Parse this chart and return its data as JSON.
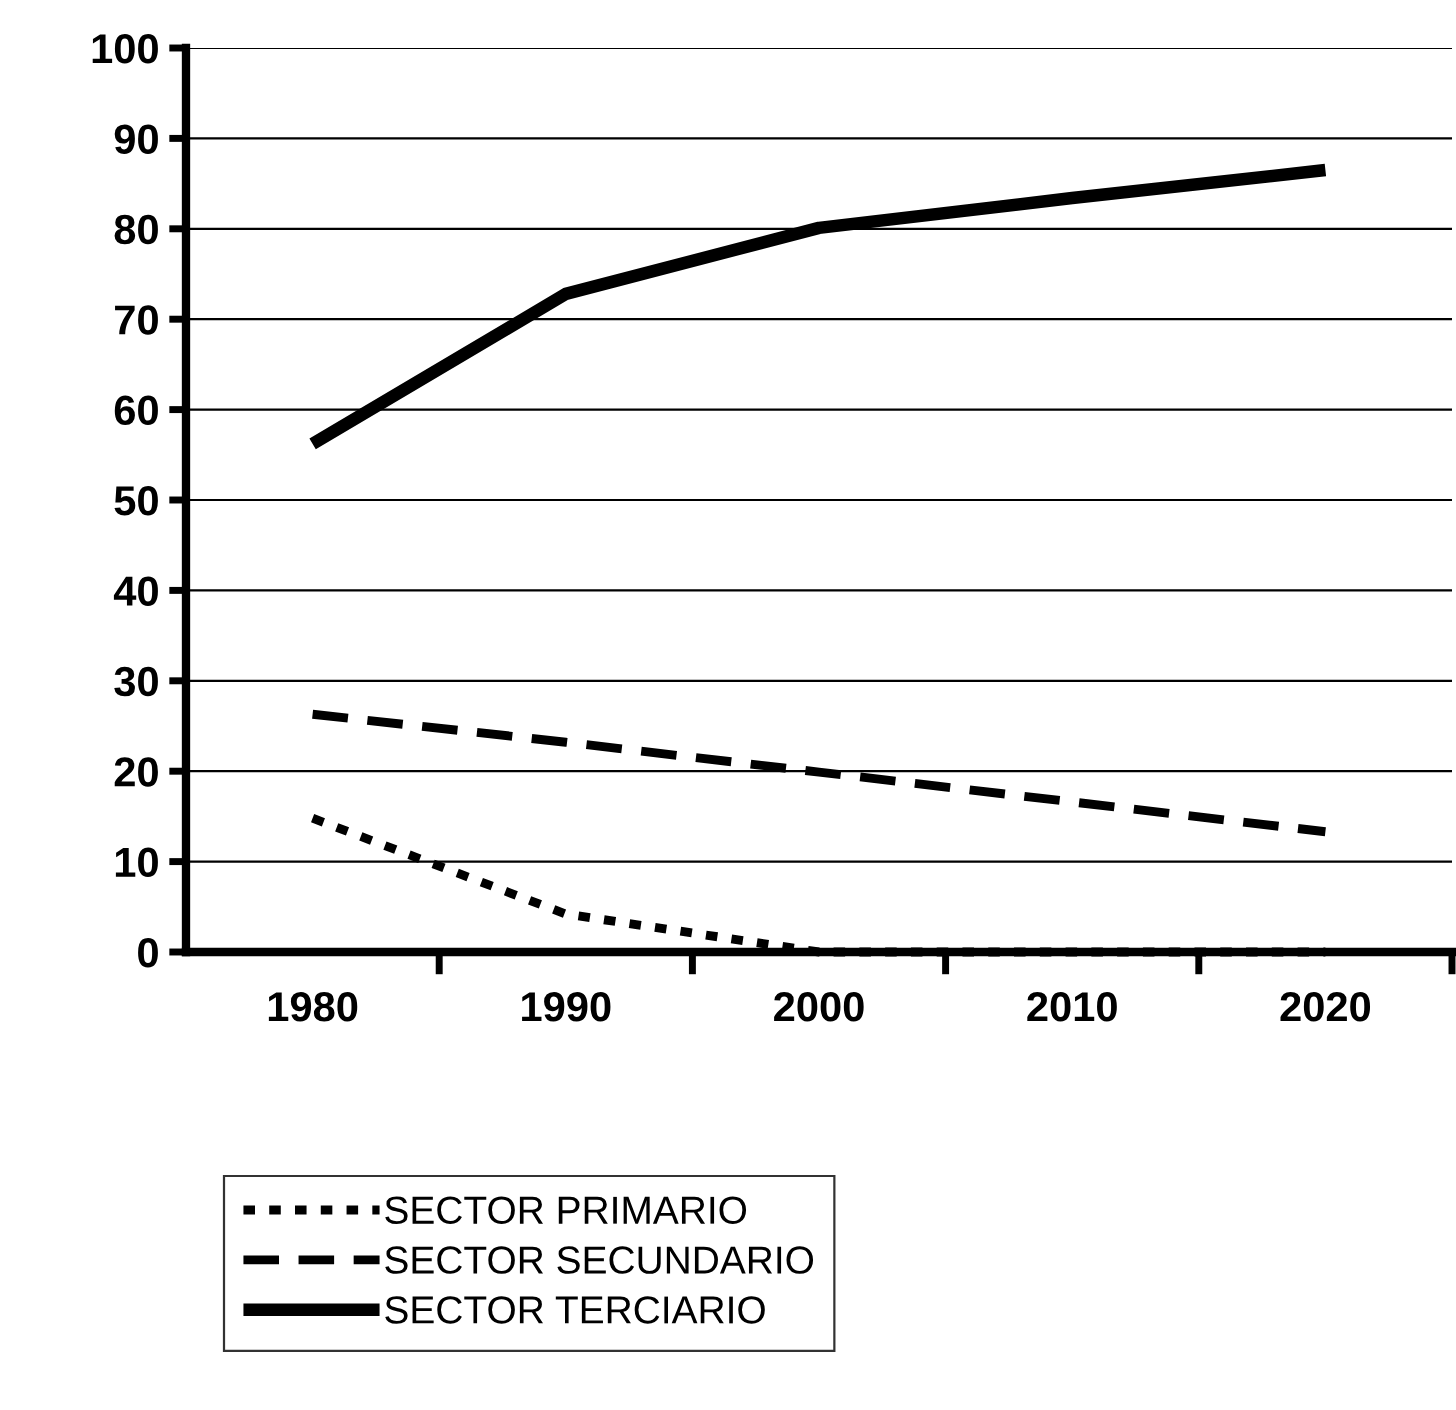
{
  "chart_data": {
    "type": "line",
    "categories": [
      "1980",
      "1990",
      "2000",
      "2010",
      "2020"
    ],
    "series": [
      {
        "name": "SECTOR PRIMARIO",
        "color": "#000000",
        "line_style": "dotted",
        "values": [
          14.8,
          4.2,
          0,
          0,
          0
        ]
      },
      {
        "name": "SECTOR SECUNDARIO",
        "color": "#000000",
        "line_style": "dashed",
        "values": [
          26.3,
          23.2,
          19.9,
          16.6,
          13.3
        ]
      },
      {
        "name": "SECTOR TERCIARIO",
        "color": "#000000",
        "line_style": "solid",
        "values": [
          56.2,
          72.8,
          80.1,
          83.4,
          86.5
        ]
      }
    ],
    "ylim": [
      0,
      100
    ],
    "yticks": [
      0,
      10,
      20,
      30,
      40,
      50,
      60,
      70,
      80,
      90,
      100
    ],
    "grid": "y",
    "legend": "bottom",
    "marker": "none"
  }
}
